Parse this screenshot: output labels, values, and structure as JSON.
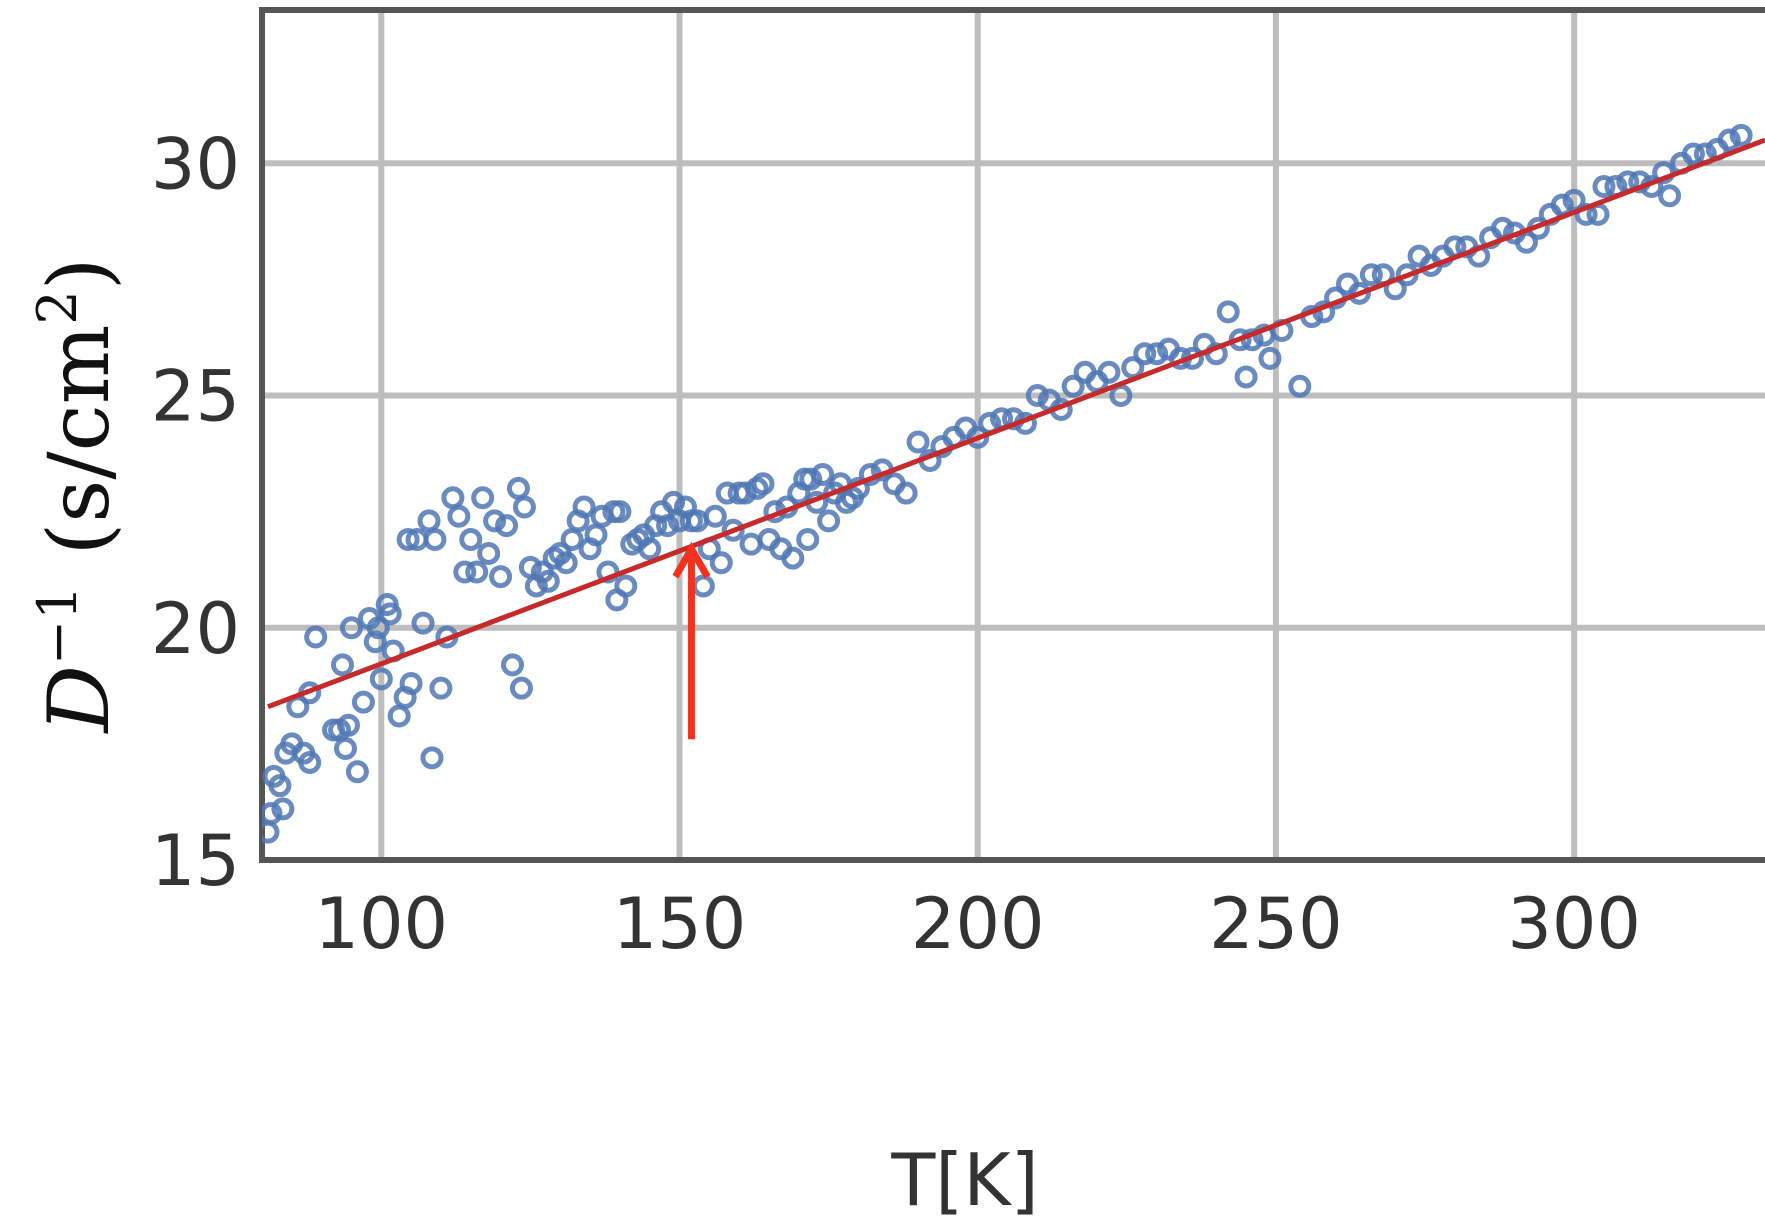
{
  "chart_data": {
    "type": "scatter",
    "title": "",
    "xlabel": "T[K]",
    "ylabel": {
      "symbol": "D",
      "exponent": "−1",
      "unit_prefix": "(s/cm",
      "unit_exponent": "2",
      "unit_suffix": ")"
    },
    "xlim": [
      80,
      332
    ],
    "ylim": [
      15,
      33.3
    ],
    "xticks": [
      100,
      150,
      200,
      250,
      300
    ],
    "yticks": [
      15,
      20,
      25,
      30
    ],
    "grid": true,
    "legend": "none",
    "series": [
      {
        "kind": "scatter",
        "marker": "open-circle",
        "color": "#4f77b4",
        "points": [
          [
            81,
            15.6
          ],
          [
            81.5,
            16.0
          ],
          [
            82,
            16.8
          ],
          [
            83,
            16.6
          ],
          [
            83.5,
            16.1
          ],
          [
            84,
            17.3
          ],
          [
            85,
            17.5
          ],
          [
            86,
            18.3
          ],
          [
            87,
            17.3
          ],
          [
            88,
            17.1
          ],
          [
            88,
            18.6
          ],
          [
            89,
            19.8
          ],
          [
            92,
            17.8
          ],
          [
            93,
            17.8
          ],
          [
            93.5,
            19.2
          ],
          [
            94,
            17.4
          ],
          [
            94.5,
            17.9
          ],
          [
            95,
            20.0
          ],
          [
            96,
            16.9
          ],
          [
            97,
            18.4
          ],
          [
            98,
            20.2
          ],
          [
            99,
            19.7
          ],
          [
            99.5,
            20.0
          ],
          [
            100,
            18.9
          ],
          [
            101,
            20.5
          ],
          [
            101.5,
            20.3
          ],
          [
            102,
            19.5
          ],
          [
            103,
            18.1
          ],
          [
            104,
            18.5
          ],
          [
            104.5,
            21.9
          ],
          [
            105,
            18.8
          ],
          [
            106,
            21.9
          ],
          [
            107,
            20.1
          ],
          [
            108,
            22.3
          ],
          [
            108.5,
            17.2
          ],
          [
            109,
            21.9
          ],
          [
            110,
            18.7
          ],
          [
            111,
            19.8
          ],
          [
            112,
            22.8
          ],
          [
            113,
            22.4
          ],
          [
            114,
            21.2
          ],
          [
            115,
            21.9
          ],
          [
            116,
            21.2
          ],
          [
            117,
            22.8
          ],
          [
            118,
            21.6
          ],
          [
            119,
            22.3
          ],
          [
            120,
            21.1
          ],
          [
            121,
            22.2
          ],
          [
            122,
            19.2
          ],
          [
            123,
            23.0
          ],
          [
            123.5,
            18.7
          ],
          [
            124,
            22.6
          ],
          [
            125,
            21.3
          ],
          [
            126,
            20.9
          ],
          [
            127,
            21.2
          ],
          [
            128,
            21.0
          ],
          [
            129,
            21.5
          ],
          [
            130,
            21.6
          ],
          [
            131,
            21.4
          ],
          [
            132,
            21.9
          ],
          [
            133,
            22.3
          ],
          [
            134,
            22.6
          ],
          [
            135,
            21.7
          ],
          [
            136,
            22.0
          ],
          [
            137,
            22.4
          ],
          [
            138,
            21.2
          ],
          [
            139,
            22.5
          ],
          [
            139.5,
            20.6
          ],
          [
            140,
            22.5
          ],
          [
            141,
            20.9
          ],
          [
            142,
            21.8
          ],
          [
            143,
            21.9
          ],
          [
            144,
            22.0
          ],
          [
            145,
            21.7
          ],
          [
            146,
            22.2
          ],
          [
            147,
            22.5
          ],
          [
            148,
            22.2
          ],
          [
            149,
            22.7
          ],
          [
            150,
            22.3
          ],
          [
            151,
            22.6
          ],
          [
            152,
            22.3
          ],
          [
            153,
            22.3
          ],
          [
            154,
            20.9
          ],
          [
            155,
            21.7
          ],
          [
            156,
            22.4
          ],
          [
            157,
            21.4
          ],
          [
            158,
            22.9
          ],
          [
            159,
            22.1
          ],
          [
            160,
            22.9
          ],
          [
            161,
            22.9
          ],
          [
            162,
            21.8
          ],
          [
            163,
            23.0
          ],
          [
            164,
            23.1
          ],
          [
            165,
            21.9
          ],
          [
            166,
            22.5
          ],
          [
            167,
            21.7
          ],
          [
            168,
            22.6
          ],
          [
            169,
            21.5
          ],
          [
            170,
            22.9
          ],
          [
            171,
            23.2
          ],
          [
            171.5,
            21.9
          ],
          [
            172,
            23.2
          ],
          [
            173,
            22.7
          ],
          [
            174,
            23.3
          ],
          [
            175,
            22.3
          ],
          [
            176,
            22.9
          ],
          [
            177,
            23.1
          ],
          [
            178,
            22.7
          ],
          [
            179,
            22.8
          ],
          [
            180,
            23.0
          ],
          [
            182,
            23.3
          ],
          [
            184,
            23.4
          ],
          [
            186,
            23.1
          ],
          [
            188,
            22.9
          ],
          [
            190,
            24.0
          ],
          [
            192,
            23.6
          ],
          [
            194,
            23.9
          ],
          [
            196,
            24.1
          ],
          [
            198,
            24.3
          ],
          [
            200,
            24.1
          ],
          [
            202,
            24.4
          ],
          [
            204,
            24.5
          ],
          [
            206,
            24.5
          ],
          [
            208,
            24.4
          ],
          [
            210,
            25.0
          ],
          [
            212,
            24.9
          ],
          [
            214,
            24.7
          ],
          [
            216,
            25.2
          ],
          [
            218,
            25.5
          ],
          [
            220,
            25.3
          ],
          [
            222,
            25.5
          ],
          [
            224,
            25.0
          ],
          [
            226,
            25.6
          ],
          [
            228,
            25.9
          ],
          [
            230,
            25.9
          ],
          [
            232,
            26.0
          ],
          [
            234,
            25.8
          ],
          [
            236,
            25.8
          ],
          [
            238,
            26.1
          ],
          [
            240,
            25.9
          ],
          [
            242,
            26.8
          ],
          [
            244,
            26.2
          ],
          [
            245,
            25.4
          ],
          [
            246,
            26.2
          ],
          [
            248,
            26.3
          ],
          [
            249,
            25.8
          ],
          [
            251,
            26.4
          ],
          [
            254,
            25.2
          ],
          [
            256,
            26.7
          ],
          [
            258,
            26.8
          ],
          [
            260,
            27.1
          ],
          [
            262,
            27.4
          ],
          [
            264,
            27.2
          ],
          [
            266,
            27.6
          ],
          [
            268,
            27.6
          ],
          [
            270,
            27.3
          ],
          [
            272,
            27.6
          ],
          [
            274,
            28.0
          ],
          [
            276,
            27.8
          ],
          [
            278,
            28.0
          ],
          [
            280,
            28.2
          ],
          [
            282,
            28.2
          ],
          [
            284,
            28.0
          ],
          [
            286,
            28.4
          ],
          [
            288,
            28.6
          ],
          [
            290,
            28.5
          ],
          [
            292,
            28.3
          ],
          [
            294,
            28.6
          ],
          [
            296,
            28.9
          ],
          [
            298,
            29.1
          ],
          [
            300,
            29.2
          ],
          [
            302,
            28.9
          ],
          [
            304,
            28.9
          ],
          [
            305,
            29.5
          ],
          [
            307,
            29.5
          ],
          [
            309,
            29.6
          ],
          [
            311,
            29.6
          ],
          [
            313,
            29.5
          ],
          [
            315,
            29.8
          ],
          [
            316,
            29.3
          ],
          [
            318,
            30.0
          ],
          [
            320,
            30.2
          ],
          [
            322,
            30.2
          ],
          [
            324,
            30.3
          ],
          [
            326,
            30.5
          ],
          [
            328,
            30.6
          ]
        ]
      },
      {
        "kind": "line",
        "color": "#c62a2a",
        "points": [
          [
            81,
            18.3
          ],
          [
            332,
            30.5
          ]
        ]
      }
    ],
    "annotations": [
      {
        "kind": "arrow",
        "color": "#f0321e",
        "from": [
          152,
          17.6
        ],
        "to": [
          152,
          21.7
        ]
      }
    ]
  }
}
